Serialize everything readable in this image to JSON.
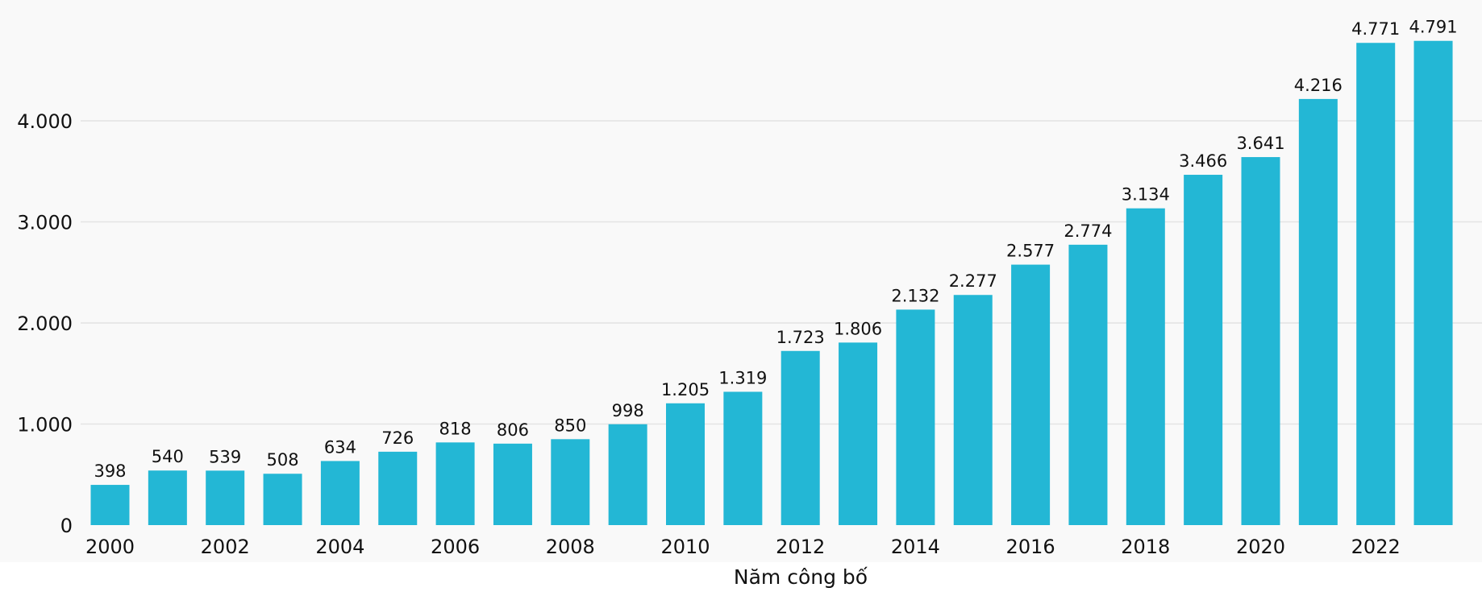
{
  "chart_data": {
    "type": "bar",
    "categories": [
      "2000",
      "2001",
      "2002",
      "2003",
      "2004",
      "2005",
      "2006",
      "2007",
      "2008",
      "2009",
      "2010",
      "2011",
      "2012",
      "2013",
      "2014",
      "2015",
      "2016",
      "2017",
      "2018",
      "2019",
      "2020",
      "2021",
      "2022",
      "2023"
    ],
    "values": [
      398,
      540,
      539,
      508,
      634,
      726,
      818,
      806,
      850,
      998,
      1205,
      1319,
      1723,
      1806,
      2132,
      2277,
      2577,
      2774,
      3134,
      3466,
      3641,
      4216,
      4771,
      4791
    ],
    "value_labels": [
      "398",
      "540",
      "539",
      "508",
      "634",
      "726",
      "818",
      "806",
      "850",
      "998",
      "1.205",
      "1.319",
      "1.723",
      "1.806",
      "2.132",
      "2.277",
      "2.577",
      "2.774",
      "3.134",
      "3.466",
      "3.641",
      "4.216",
      "4.771",
      "4.791"
    ],
    "x_tick_labels": [
      "2000",
      "2002",
      "2004",
      "2006",
      "2008",
      "2010",
      "2012",
      "2014",
      "2016",
      "2018",
      "2020",
      "2022"
    ],
    "y_ticks": [
      0,
      1000,
      2000,
      3000,
      4000
    ],
    "y_tick_labels": [
      "0",
      "1.000",
      "2.000",
      "3.000",
      "4.000"
    ],
    "xlabel": "Năm công bố",
    "ylabel": "",
    "title": "",
    "ylim": [
      0,
      4791
    ],
    "grid": true,
    "legend": "none",
    "bar_color": "#23b7d5",
    "background_color": "#f9f9f9"
  }
}
